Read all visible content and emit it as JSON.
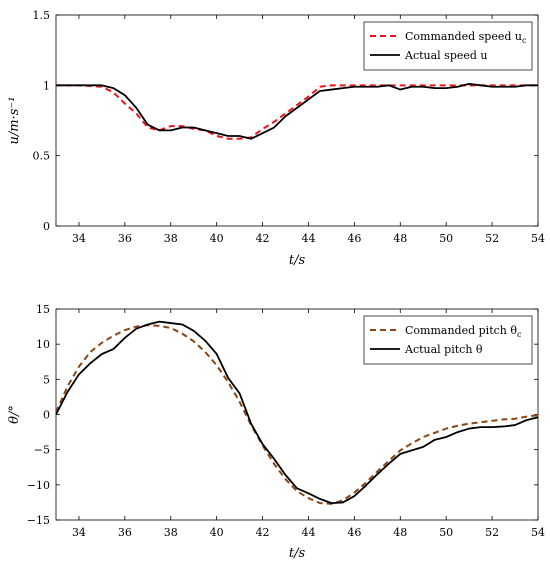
{
  "chart_data": [
    {
      "type": "line",
      "xlabel": "t/s",
      "ylabel": "u/m·s⁻¹",
      "xlim": [
        33,
        54
      ],
      "ylim": [
        0,
        1.5
      ],
      "xticks": [
        34,
        36,
        38,
        40,
        42,
        44,
        46,
        48,
        50,
        52,
        54
      ],
      "yticks": [
        0,
        0.5,
        1,
        1.5
      ],
      "xtick_labels": [
        "34",
        "36",
        "38",
        "40",
        "42",
        "44",
        "46",
        "48",
        "50",
        "52",
        "54"
      ],
      "ytick_labels": [
        "0",
        "0.5",
        "1",
        "1.5"
      ],
      "grid": false,
      "legend_position": "top-right",
      "series": [
        {
          "name": "Commanded speed u_c",
          "legend_label": "Commanded speed u",
          "legend_subscript": "c",
          "color": "#e8141a",
          "dash": "dashed",
          "x": [
            33,
            34,
            35,
            35.5,
            36,
            36.5,
            37,
            37.5,
            38,
            38.5,
            39,
            39.5,
            40,
            40.5,
            41,
            41.5,
            42,
            42.5,
            43,
            43.5,
            44,
            44.5,
            45,
            46,
            47,
            48,
            49,
            50,
            51,
            52,
            53,
            54
          ],
          "y": [
            1.0,
            1.0,
            0.99,
            0.95,
            0.87,
            0.8,
            0.7,
            0.68,
            0.71,
            0.71,
            0.69,
            0.68,
            0.64,
            0.62,
            0.62,
            0.63,
            0.69,
            0.74,
            0.8,
            0.86,
            0.92,
            0.99,
            1.0,
            1.0,
            1.0,
            1.0,
            1.0,
            1.0,
            1.0,
            1.0,
            1.0,
            1.0
          ]
        },
        {
          "name": "Actual speed u",
          "legend_label": "Actual speed u",
          "color": "#000000",
          "dash": "solid",
          "x": [
            33,
            34,
            35,
            35.5,
            36,
            36.5,
            37,
            37.5,
            38,
            38.5,
            39,
            39.5,
            40,
            40.5,
            41,
            41.5,
            42,
            42.5,
            43,
            43.5,
            44,
            44.5,
            45,
            45.5,
            46,
            46.5,
            47,
            47.5,
            48,
            48.5,
            49,
            49.5,
            50,
            50.5,
            51,
            51.5,
            52,
            52.5,
            53,
            53.5,
            54
          ],
          "y": [
            1.0,
            1.0,
            1.0,
            0.98,
            0.93,
            0.84,
            0.72,
            0.68,
            0.68,
            0.7,
            0.7,
            0.68,
            0.66,
            0.64,
            0.64,
            0.62,
            0.66,
            0.7,
            0.78,
            0.84,
            0.9,
            0.96,
            0.97,
            0.98,
            0.99,
            0.99,
            0.99,
            1.0,
            0.97,
            0.99,
            0.99,
            0.98,
            0.98,
            0.99,
            1.01,
            1.0,
            0.99,
            0.99,
            0.99,
            1.0,
            1.0
          ]
        }
      ]
    },
    {
      "type": "line",
      "xlabel": "t/s",
      "ylabel": "θ/°",
      "xlim": [
        33,
        54
      ],
      "ylim": [
        -15,
        15
      ],
      "xticks": [
        34,
        36,
        38,
        40,
        42,
        44,
        46,
        48,
        50,
        52,
        54
      ],
      "yticks": [
        -15,
        -10,
        -5,
        0,
        5,
        10,
        15
      ],
      "xtick_labels": [
        "34",
        "36",
        "38",
        "40",
        "42",
        "44",
        "46",
        "48",
        "50",
        "52",
        "54"
      ],
      "ytick_labels": [
        "−15",
        "−10",
        "−5",
        "0",
        "5",
        "10",
        "15"
      ],
      "grid": false,
      "legend_position": "top-right",
      "series": [
        {
          "name": "Commanded pitch θ_c",
          "legend_label": "Commanded pitch θ",
          "legend_subscript": "c",
          "color": "#8b4513",
          "dash": "dashed",
          "x": [
            33,
            33.5,
            34,
            34.5,
            35,
            35.5,
            36,
            36.5,
            37,
            37.5,
            38,
            38.5,
            39,
            39.5,
            40,
            40.5,
            41,
            41.5,
            42,
            42.5,
            43,
            43.5,
            44,
            44.5,
            45,
            45.5,
            46,
            46.5,
            47,
            47.5,
            48,
            48.5,
            49,
            49.5,
            50,
            50.5,
            51,
            51.5,
            52,
            52.5,
            53,
            53.5,
            54
          ],
          "y": [
            0.3,
            4.0,
            6.8,
            8.9,
            10.2,
            11.2,
            12.0,
            12.5,
            12.7,
            12.6,
            12.3,
            11.5,
            10.4,
            8.9,
            7.0,
            4.6,
            1.8,
            -1.5,
            -4.4,
            -7.0,
            -9.2,
            -10.9,
            -11.9,
            -12.6,
            -12.7,
            -12.2,
            -11.1,
            -9.7,
            -8.1,
            -6.6,
            -5.1,
            -4.1,
            -3.2,
            -2.6,
            -2.0,
            -1.6,
            -1.3,
            -1.1,
            -0.9,
            -0.7,
            -0.6,
            -0.3,
            -0.1
          ]
        },
        {
          "name": "Actual pitch θ",
          "legend_label": "Actual pitch θ",
          "color": "#000000",
          "dash": "solid",
          "x": [
            33,
            33.5,
            34,
            34.5,
            35,
            35.5,
            36,
            36.5,
            37,
            37.5,
            38,
            38.5,
            39,
            39.5,
            40,
            40.5,
            41,
            41.5,
            42,
            42.5,
            43,
            43.5,
            44,
            44.5,
            45,
            45.5,
            46,
            46.5,
            47,
            47.5,
            48,
            48.5,
            49,
            49.5,
            50,
            50.5,
            51,
            51.5,
            52,
            52.5,
            53,
            53.5,
            54
          ],
          "y": [
            0.0,
            3.2,
            5.7,
            7.3,
            8.6,
            9.3,
            10.9,
            12.2,
            12.8,
            13.2,
            13.0,
            12.8,
            11.9,
            10.5,
            8.6,
            5.2,
            3.0,
            -1.3,
            -4.2,
            -6.3,
            -8.6,
            -10.5,
            -11.2,
            -12.0,
            -12.6,
            -12.5,
            -11.6,
            -10.1,
            -8.5,
            -7.0,
            -5.6,
            -5.1,
            -4.6,
            -3.6,
            -3.2,
            -2.5,
            -2.0,
            -1.8,
            -1.8,
            -1.7,
            -1.5,
            -0.8,
            -0.4
          ]
        }
      ]
    }
  ]
}
